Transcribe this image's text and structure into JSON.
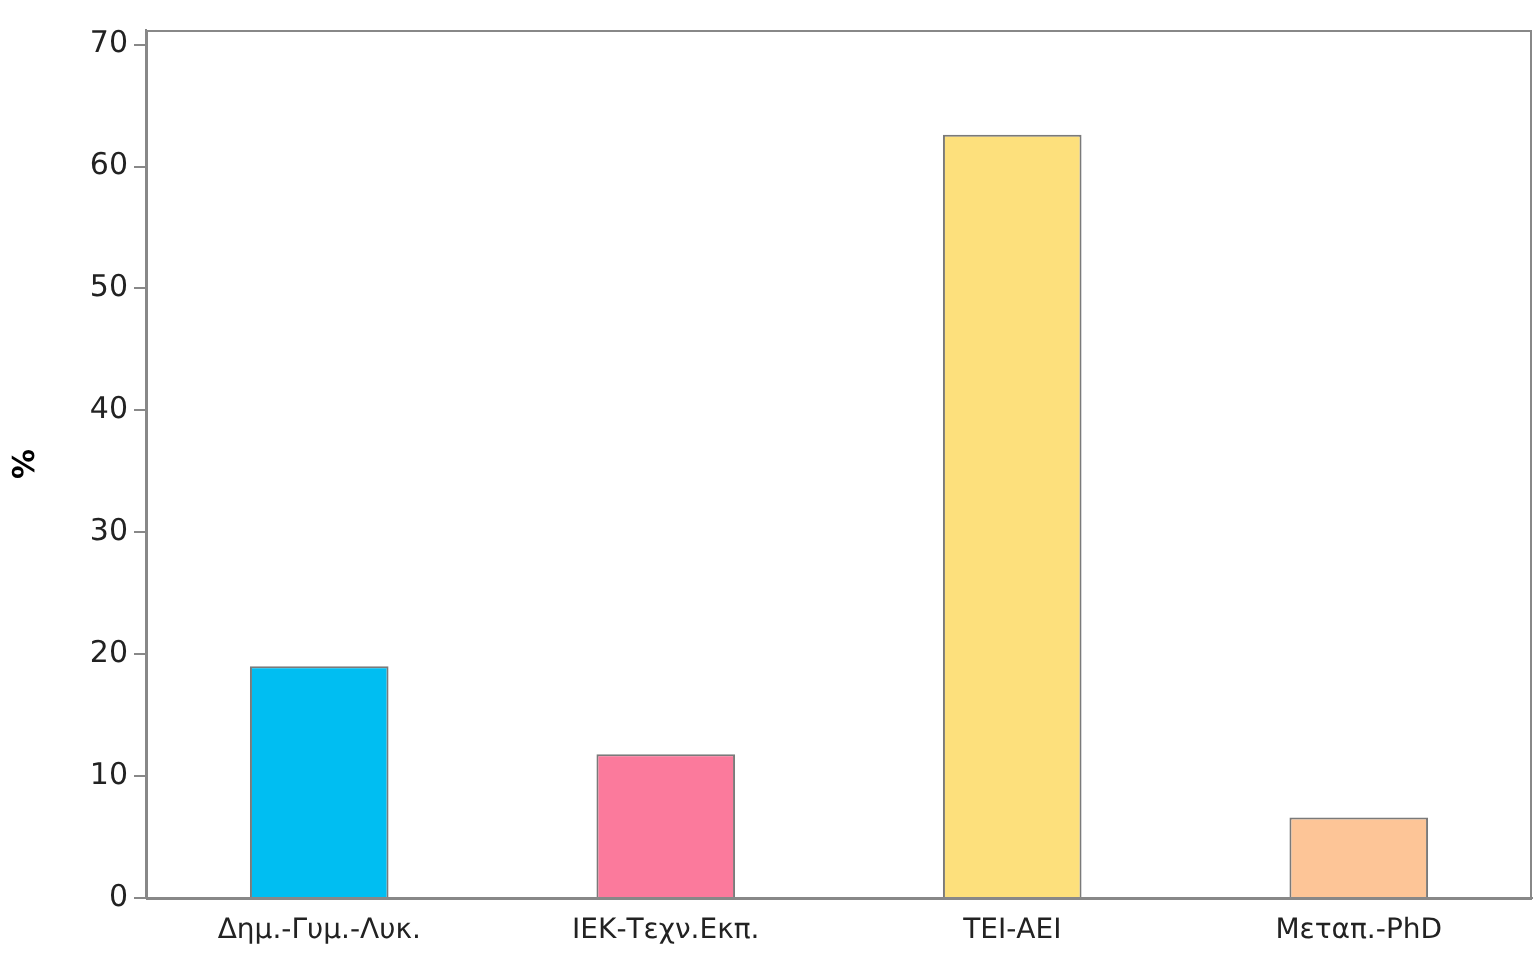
{
  "chart_data": {
    "type": "bar",
    "ylabel": "%",
    "categories": [
      "Δημ.-Γυμ.-Λυκ.",
      "ΙΕΚ-Τεχν.Εκπ.",
      "ΤΕΙ-ΑΕΙ",
      "Μεταπ.-PhD"
    ],
    "values": [
      19,
      11.8,
      62.6,
      6.6
    ],
    "colors": [
      "#00bef2",
      "#fb7a9c",
      "#fde07c",
      "#fdc597"
    ],
    "ylim": [
      0,
      71.2
    ],
    "yticks": [
      0,
      10,
      20,
      30,
      40,
      50,
      60,
      70
    ],
    "grid": false,
    "legend": false
  }
}
